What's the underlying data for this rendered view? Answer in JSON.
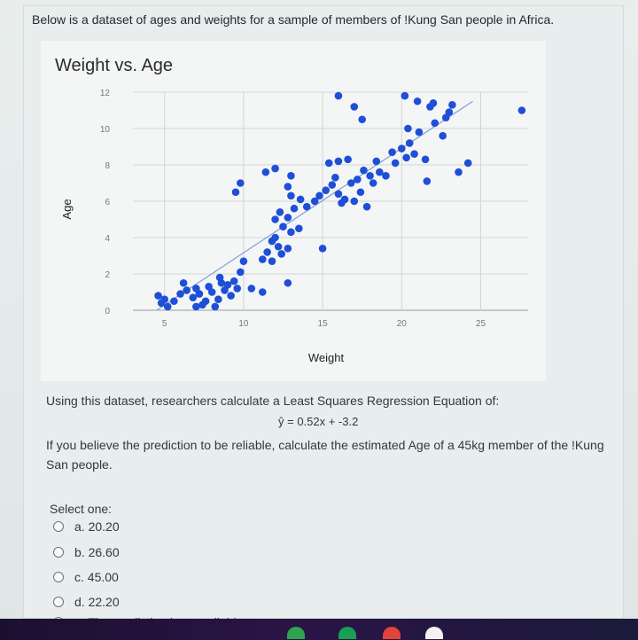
{
  "intro_text": "Below is a dataset of ages and weights for a sample of members of !Kung San people in Africa.",
  "chart": {
    "title": "Weight vs. Age",
    "xlabel": "Weight",
    "ylabel": "Age"
  },
  "chart_data": {
    "type": "scatter",
    "title": "Weight vs. Age",
    "xlabel": "Weight",
    "ylabel": "Age",
    "xlim": [
      3,
      28
    ],
    "ylim": [
      0,
      12
    ],
    "x_ticks": [
      "5",
      "10",
      "15",
      "20",
      "25"
    ],
    "y_ticks": [
      "0",
      "2",
      "4",
      "6",
      "8",
      "10",
      "12"
    ],
    "grid": true,
    "trendline": {
      "from": [
        4.5,
        0
      ],
      "to": [
        24.5,
        11.5
      ]
    },
    "color": "#1f4fd6",
    "points": [
      [
        4.8,
        0.4
      ],
      [
        5.2,
        0.2
      ],
      [
        5.6,
        0.5
      ],
      [
        4.6,
        0.8
      ],
      [
        5.0,
        0.6
      ],
      [
        6.0,
        0.9
      ],
      [
        6.4,
        1.1
      ],
      [
        6.8,
        0.7
      ],
      [
        7.0,
        1.2
      ],
      [
        7.2,
        0.9
      ],
      [
        7.4,
        0.3
      ],
      [
        7.6,
        0.5
      ],
      [
        7.8,
        1.3
      ],
      [
        8.0,
        1.0
      ],
      [
        8.2,
        0.2
      ],
      [
        8.4,
        0.6
      ],
      [
        8.6,
        1.5
      ],
      [
        8.8,
        1.1
      ],
      [
        9.0,
        1.4
      ],
      [
        9.2,
        0.8
      ],
      [
        9.4,
        1.6
      ],
      [
        9.6,
        1.2
      ],
      [
        6.2,
        1.5
      ],
      [
        7.0,
        0.2
      ],
      [
        8.5,
        1.8
      ],
      [
        10.0,
        2.7
      ],
      [
        9.8,
        2.1
      ],
      [
        11.2,
        2.8
      ],
      [
        11.5,
        3.2
      ],
      [
        11.8,
        2.7
      ],
      [
        12.2,
        3.5
      ],
      [
        12.4,
        3.1
      ],
      [
        11.8,
        3.8
      ],
      [
        12.8,
        3.4
      ],
      [
        12.0,
        4.0
      ],
      [
        12.5,
        4.6
      ],
      [
        13.0,
        4.3
      ],
      [
        13.5,
        4.5
      ],
      [
        12.0,
        5.0
      ],
      [
        12.8,
        5.1
      ],
      [
        13.2,
        5.6
      ],
      [
        12.3,
        5.4
      ],
      [
        14.0,
        5.7
      ],
      [
        14.5,
        6.0
      ],
      [
        13.6,
        6.1
      ],
      [
        13.0,
        6.3
      ],
      [
        12.8,
        6.8
      ],
      [
        14.8,
        6.3
      ],
      [
        15.2,
        6.6
      ],
      [
        15.6,
        6.9
      ],
      [
        16.0,
        6.4
      ],
      [
        16.4,
        6.1
      ],
      [
        16.8,
        7.0
      ],
      [
        15.8,
        7.3
      ],
      [
        15.4,
        8.1
      ],
      [
        16.0,
        8.2
      ],
      [
        16.6,
        8.3
      ],
      [
        17.2,
        7.2
      ],
      [
        17.6,
        7.7
      ],
      [
        18.0,
        7.4
      ],
      [
        18.2,
        7.0
      ],
      [
        19.0,
        7.4
      ],
      [
        17.4,
        6.5
      ],
      [
        17.0,
        6.0
      ],
      [
        16.2,
        5.9
      ],
      [
        17.8,
        5.7
      ],
      [
        18.4,
        8.2
      ],
      [
        18.6,
        7.6
      ],
      [
        19.4,
        8.7
      ],
      [
        20.0,
        8.9
      ],
      [
        19.6,
        8.1
      ],
      [
        20.3,
        8.4
      ],
      [
        20.8,
        8.6
      ],
      [
        20.5,
        9.2
      ],
      [
        21.1,
        9.8
      ],
      [
        21.5,
        8.3
      ],
      [
        21.8,
        11.2
      ],
      [
        22.8,
        10.6
      ],
      [
        23.0,
        10.9
      ],
      [
        23.2,
        11.3
      ],
      [
        22.1,
        10.3
      ],
      [
        22.6,
        9.6
      ],
      [
        11.4,
        7.6
      ],
      [
        9.5,
        6.5
      ],
      [
        9.8,
        7.0
      ],
      [
        12.0,
        7.8
      ],
      [
        13.0,
        7.4
      ],
      [
        16.0,
        11.8
      ],
      [
        17.0,
        11.2
      ],
      [
        17.5,
        10.5
      ],
      [
        20.2,
        11.8
      ],
      [
        21.0,
        11.5
      ],
      [
        22.0,
        11.4
      ],
      [
        20.4,
        10.0
      ],
      [
        21.6,
        7.1
      ],
      [
        23.6,
        7.6
      ],
      [
        24.2,
        8.1
      ],
      [
        27.6,
        11.0
      ],
      [
        15.0,
        3.4
      ],
      [
        12.8,
        1.5
      ],
      [
        11.2,
        1.0
      ],
      [
        10.5,
        1.2
      ]
    ]
  },
  "regression_intro": "Using this dataset, researchers calculate a Least Squares Regression Equation of:",
  "equation": "ŷ = 0.52x + -3.2",
  "prompt_line1": "If you believe the prediction to be reliable, calculate the estimated Age of a 45kg member of the !Kung",
  "prompt_line2": "San people.",
  "select_label": "Select one:",
  "options": [
    {
      "label": "a. 20.20"
    },
    {
      "label": "b. 26.60"
    },
    {
      "label": "c. 45.00"
    },
    {
      "label": "d. 22.20"
    },
    {
      "label": "e. The prediction is not reliable"
    }
  ]
}
